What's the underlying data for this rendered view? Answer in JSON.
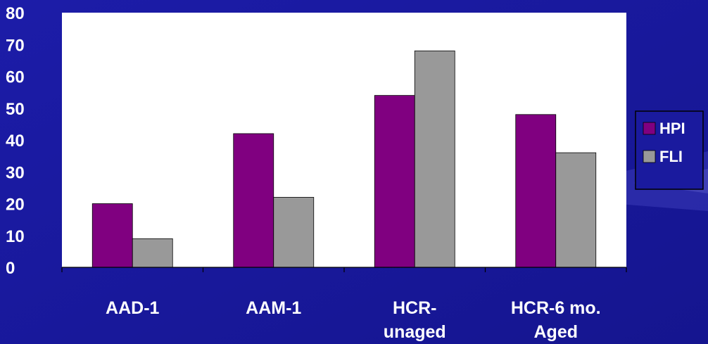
{
  "chart_data": {
    "type": "bar",
    "categories": [
      [
        "AAD-1"
      ],
      [
        "AAM-1"
      ],
      [
        "HCR-",
        "unaged"
      ],
      [
        "HCR-6 mo.",
        "Aged"
      ]
    ],
    "series": [
      {
        "name": "HPI",
        "values": [
          20,
          42,
          54,
          48
        ],
        "color": "#800080"
      },
      {
        "name": "FLI",
        "values": [
          9,
          22,
          68,
          36
        ],
        "color": "#999999"
      }
    ],
    "y_ticks": [
      "0",
      "10",
      "20",
      "30",
      "40",
      "50",
      "60",
      "70",
      "80"
    ],
    "ylim": [
      0,
      80
    ],
    "title": "",
    "xlabel": "",
    "ylabel": "",
    "grid": false,
    "legend_position": "right",
    "plot_background": "#ffffff",
    "page_background": "#1a1a9e"
  }
}
